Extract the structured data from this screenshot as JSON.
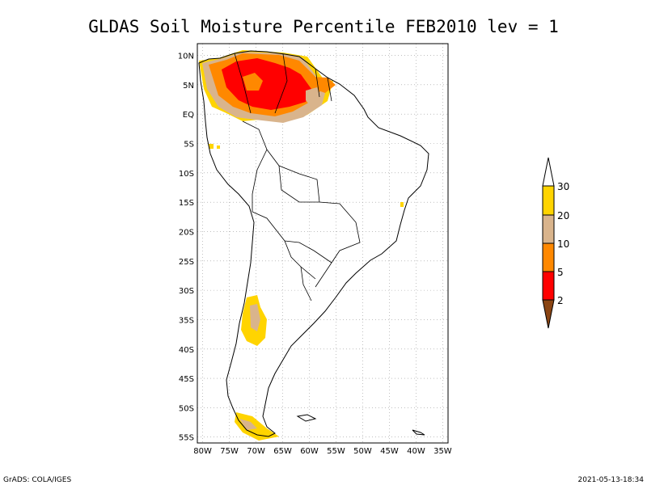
{
  "title": "GLDAS Soil Moisture Percentile FEB2010 lev = 1",
  "footer": {
    "left": "GrADS: COLA/IGES",
    "right": "2021-05-13-18:34"
  },
  "map": {
    "lon_range": [
      -81,
      -34
    ],
    "lat_range": [
      -56,
      12
    ],
    "lon_ticks": [
      "80W",
      "75W",
      "70W",
      "65W",
      "60W",
      "55W",
      "50W",
      "45W",
      "40W",
      "35W"
    ],
    "lat_ticks": [
      "10N",
      "5N",
      "EQ",
      "5S",
      "10S",
      "15S",
      "20S",
      "25S",
      "30S",
      "35S",
      "40S",
      "45S",
      "50S",
      "55S"
    ],
    "grid": true
  },
  "legend": {
    "labels": [
      "30",
      "20",
      "10",
      "5",
      "2"
    ],
    "colors": {
      "top_cap": "#ffffff",
      "b20_30": "#ffd400",
      "b10_20": "#d9b48c",
      "b5_10": "#ff8800",
      "b2_5": "#ff0000",
      "bottom_cap": "#8b4513"
    }
  }
}
